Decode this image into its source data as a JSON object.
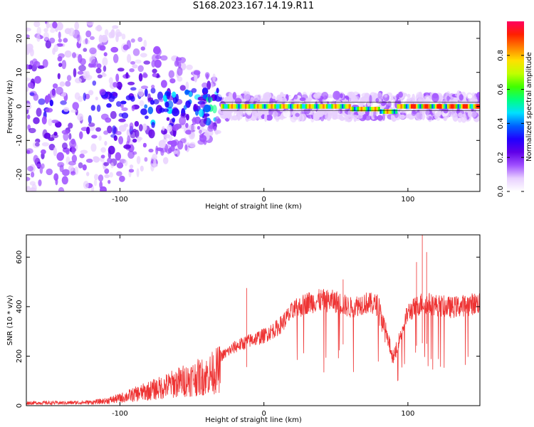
{
  "title": "S168.2023.167.14.19.R11",
  "chart_data": [
    {
      "type": "heatmap",
      "xlabel": "Height of straight line (km)",
      "ylabel": "Frequency (Hz)",
      "xlim": [
        -165,
        150
      ],
      "ylim": [
        -25,
        25
      ],
      "xticks": [
        -100,
        0,
        100
      ],
      "yticks": [
        -20,
        -10,
        0,
        10,
        20
      ],
      "colorbar": {
        "label": "Normalized spectral amplitude",
        "range": [
          0,
          1
        ],
        "ticks": [
          "0.0",
          "0.2",
          "0.4",
          "0.6",
          "0.8"
        ],
        "colormap": [
          "#ffffff",
          "#e8d0ff",
          "#a050ff",
          "#6000e8",
          "#2000ff",
          "#0060ff",
          "#00e0ff",
          "#00ff80",
          "#40ff00",
          "#c0ff00",
          "#ffe000",
          "#ff8000",
          "#ff2000",
          "#ff0060"
        ]
      },
      "signal_band": {
        "frequency_hz": 0,
        "onset_km": -30,
        "peak_amplitude": 0.9
      },
      "grid": false
    },
    {
      "type": "line",
      "xlabel": "Height of straight line (km)",
      "ylabel": "SNR (10 * v/v)",
      "xlim": [
        -165,
        150
      ],
      "ylim": [
        0,
        690
      ],
      "xticks": [
        -100,
        0,
        100
      ],
      "yticks": [
        0,
        200,
        400,
        600
      ],
      "color": "#ee3333",
      "envelope": {
        "x": [
          -165,
          -140,
          -120,
          -110,
          -100,
          -90,
          -80,
          -70,
          -60,
          -50,
          -40,
          -30,
          -20,
          -10,
          0,
          10,
          20,
          30,
          40,
          50,
          60,
          70,
          80,
          85,
          90,
          100,
          110,
          120,
          130,
          140,
          150
        ],
        "y": [
          15,
          15,
          18,
          25,
          40,
          60,
          80,
          100,
          125,
          145,
          160,
          200,
          240,
          265,
          285,
          320,
          385,
          420,
          430,
          425,
          400,
          420,
          410,
          300,
          200,
          380,
          420,
          410,
          400,
          410,
          420
        ]
      },
      "spikes": [
        {
          "x": -12,
          "y": 475
        },
        {
          "x": 55,
          "y": 510
        },
        {
          "x": 106,
          "y": 580
        },
        {
          "x": 110,
          "y": 690
        },
        {
          "x": 113,
          "y": 620
        }
      ],
      "grid": false
    }
  ]
}
